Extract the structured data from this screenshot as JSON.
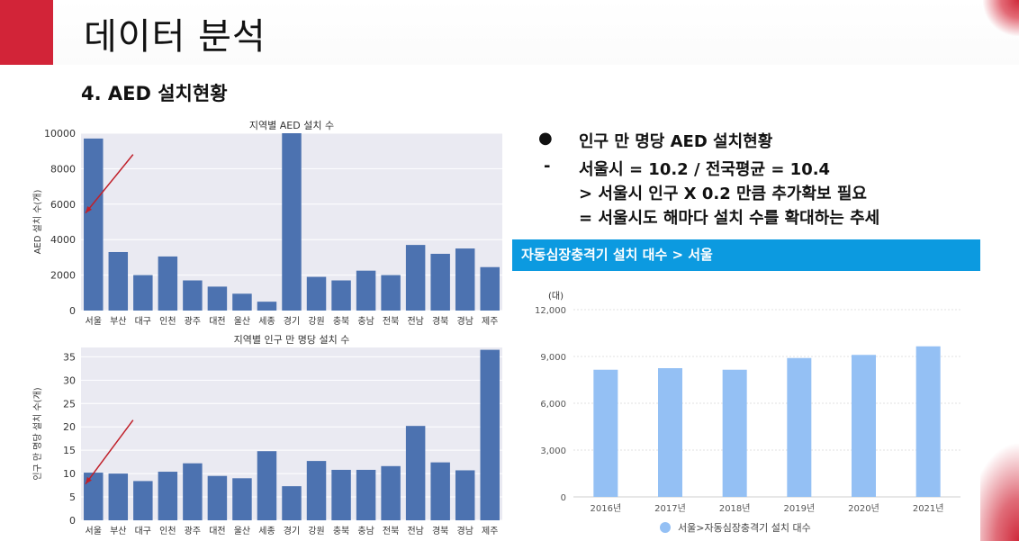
{
  "slide": {
    "title": "데이터 분석",
    "section": "4. AED 설치현황"
  },
  "bullets": [
    {
      "mark": "●",
      "text": "인구 만 명당 AED 설치현황"
    },
    {
      "mark": "-",
      "text": "서울시 = 10.2 / 전국평균 = 10.4"
    },
    {
      "mark": "",
      "text": "> 서울시 인구 X 0.2 만큼 추가확보 필요"
    },
    {
      "mark": "",
      "text": "= 서울시도 해마다 설치 수를 확대하는 추세"
    }
  ],
  "colors": {
    "accent_red": "#d22438",
    "bar_blue": "#4c72b0",
    "bar_light_blue": "#94c0f4",
    "header_blue": "#0c9ae0",
    "arrow_red": "#c0202a"
  },
  "chart_data": [
    {
      "type": "bar",
      "title": "지역별 AED 설치 수",
      "xlabel": "",
      "ylabel": "AED 설치 수(개)",
      "categories": [
        "서울",
        "부산",
        "대구",
        "인천",
        "광주",
        "대전",
        "울산",
        "세종",
        "경기",
        "강원",
        "충북",
        "충남",
        "전북",
        "전남",
        "경북",
        "경남",
        "제주"
      ],
      "values": [
        9700,
        3300,
        2000,
        3050,
        1700,
        1350,
        950,
        500,
        10000,
        1900,
        1700,
        2250,
        2000,
        3700,
        3200,
        3500,
        2450
      ],
      "ylim": [
        0,
        10000
      ],
      "yticks": [
        0,
        2000,
        4000,
        6000,
        8000,
        10000
      ],
      "grid": true
    },
    {
      "type": "bar",
      "title": "지역별 인구 만 명당 설치 수",
      "xlabel": "",
      "ylabel": "인구 만 명당 설치 수(개)",
      "categories": [
        "서울",
        "부산",
        "대구",
        "인천",
        "광주",
        "대전",
        "울산",
        "세종",
        "경기",
        "강원",
        "충북",
        "충남",
        "전북",
        "전남",
        "경북",
        "경남",
        "제주"
      ],
      "values": [
        10.2,
        10.0,
        8.4,
        10.4,
        12.2,
        9.5,
        9.0,
        14.8,
        7.3,
        12.7,
        10.8,
        10.8,
        11.6,
        20.2,
        12.4,
        10.7,
        36.5
      ],
      "ylim": [
        0,
        37
      ],
      "yticks": [
        0,
        5,
        10,
        15,
        20,
        25,
        30,
        35
      ],
      "grid": true
    },
    {
      "type": "bar",
      "title": "자동심장충격기 설치 대수 > 서울",
      "xlabel": "",
      "ylabel": "(대)",
      "categories": [
        "2016년",
        "2017년",
        "2018년",
        "2019년",
        "2020년",
        "2021년"
      ],
      "series": [
        {
          "name": "서울>자동심장충격기 설치 대수",
          "values": [
            8150,
            8250,
            8150,
            8900,
            9100,
            9650
          ]
        }
      ],
      "ylim": [
        0,
        12000
      ],
      "yticks": [
        "0",
        "3,000",
        "6,000",
        "9,000",
        "12,000"
      ],
      "legend": "bottom",
      "grid": true
    }
  ]
}
